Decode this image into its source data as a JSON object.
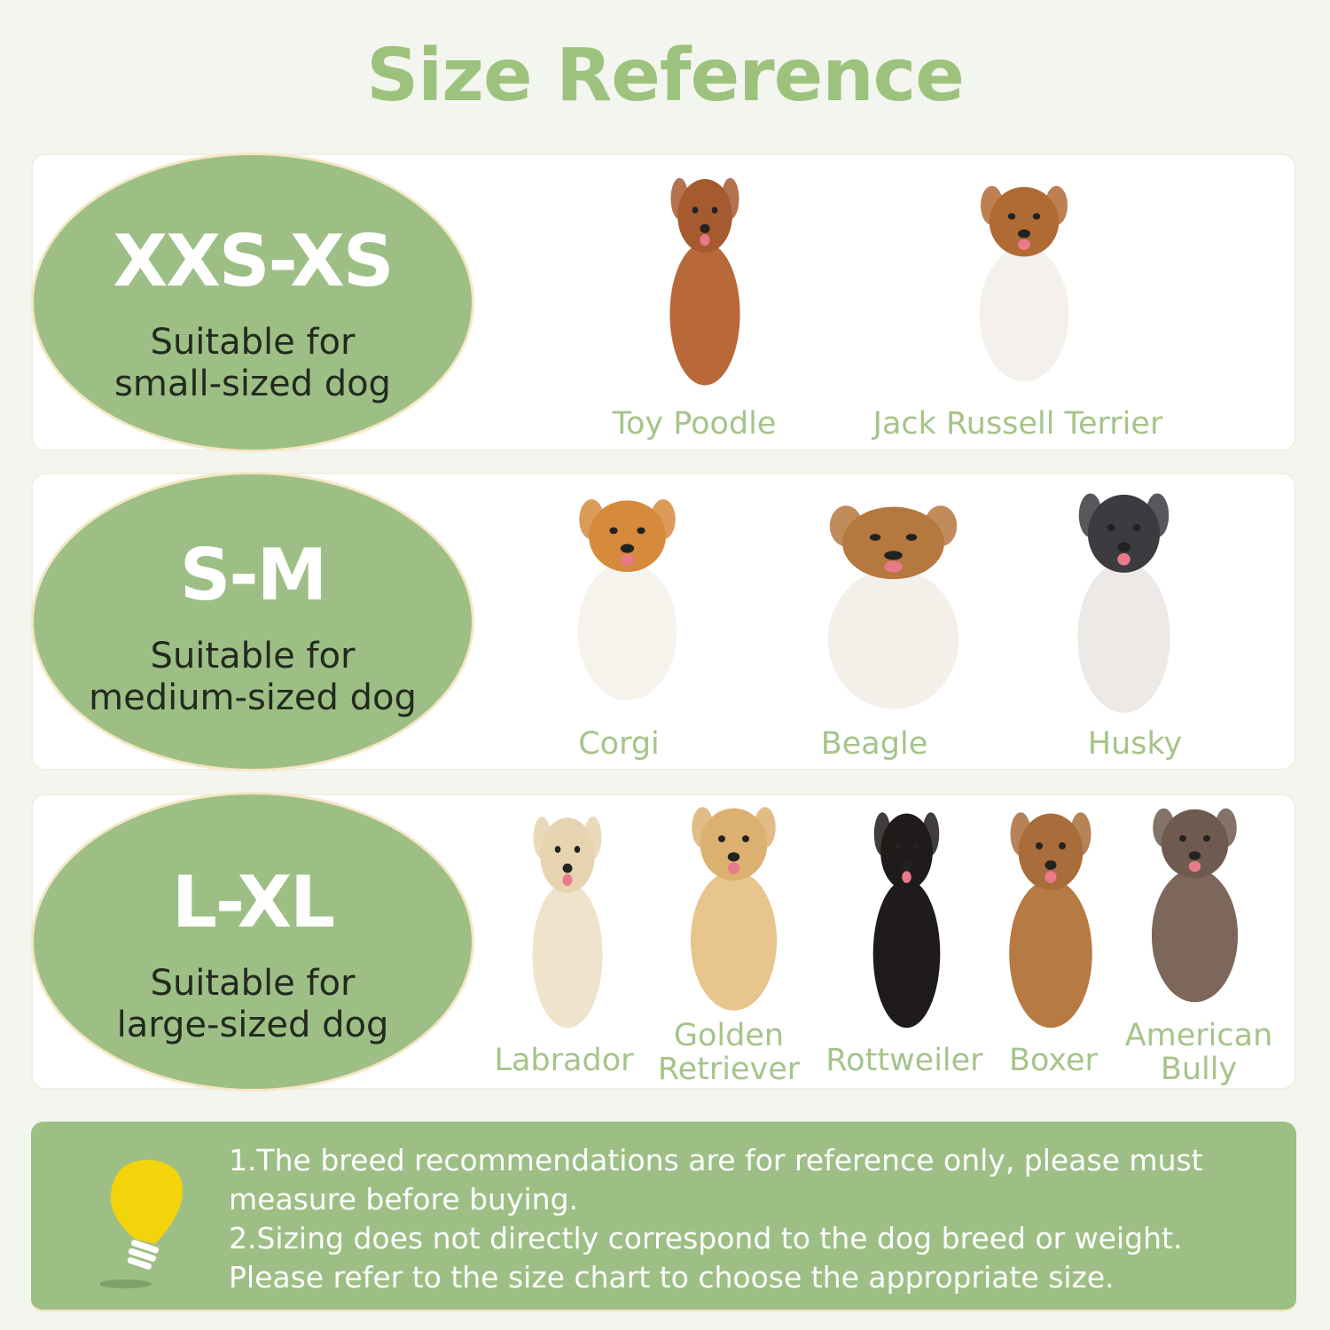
{
  "title": "Size Reference",
  "colors": {
    "accent": "#9dc27e",
    "ellipse": "#9dbf85",
    "breed_label": "#a5c48a",
    "background": "#f3f6ee"
  },
  "sizes": [
    {
      "size": "XXS-XS",
      "desc1": "Suitable for",
      "desc2": "small-sized dog",
      "breeds": [
        {
          "name": "Toy Poodle"
        },
        {
          "name": "Jack Russell Terrier"
        }
      ]
    },
    {
      "size": "S-M",
      "desc1": "Suitable for",
      "desc2": "medium-sized dog",
      "breeds": [
        {
          "name": "Corgi"
        },
        {
          "name": "Beagle"
        },
        {
          "name": "Husky"
        }
      ]
    },
    {
      "size": "L-XL",
      "desc1": "Suitable for",
      "desc2": "large-sized dog",
      "breeds": [
        {
          "name": "Labrador"
        },
        {
          "name": "Golden",
          "name2": "Retriever"
        },
        {
          "name": "Rottweiler"
        },
        {
          "name": "Boxer"
        },
        {
          "name": "American",
          "name2": "Bully"
        }
      ]
    }
  ],
  "notes": {
    "icon": "lightbulb-icon",
    "line1": "1.The breed recommendations are for reference only, please must measure before buying.",
    "line2": "2.Sizing does not directly correspond to the dog breed or weight. Please refer to the size chart to choose the appropriate size."
  }
}
